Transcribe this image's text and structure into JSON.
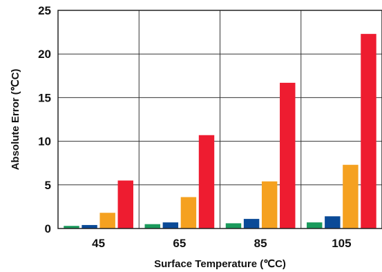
{
  "chart_data": {
    "type": "bar",
    "xlabel": "Surface Temperature (℃C)",
    "ylabel": "Absolute Error (℃C)",
    "categories": [
      "45",
      "65",
      "85",
      "105"
    ],
    "series": [
      {
        "color": "#1a9a5c",
        "values": [
          0.3,
          0.5,
          0.6,
          0.7
        ]
      },
      {
        "color": "#0a4a97",
        "values": [
          0.4,
          0.7,
          1.1,
          1.4
        ]
      },
      {
        "color": "#f5a120",
        "values": [
          1.8,
          3.6,
          5.4,
          7.3
        ]
      },
      {
        "color": "#ee1c30",
        "values": [
          5.5,
          10.7,
          16.7,
          22.3
        ]
      }
    ],
    "ylim": [
      0,
      25
    ],
    "yticks": [
      "0",
      "5",
      "10",
      "15",
      "20",
      "25"
    ],
    "grid": true,
    "legend": "none"
  }
}
